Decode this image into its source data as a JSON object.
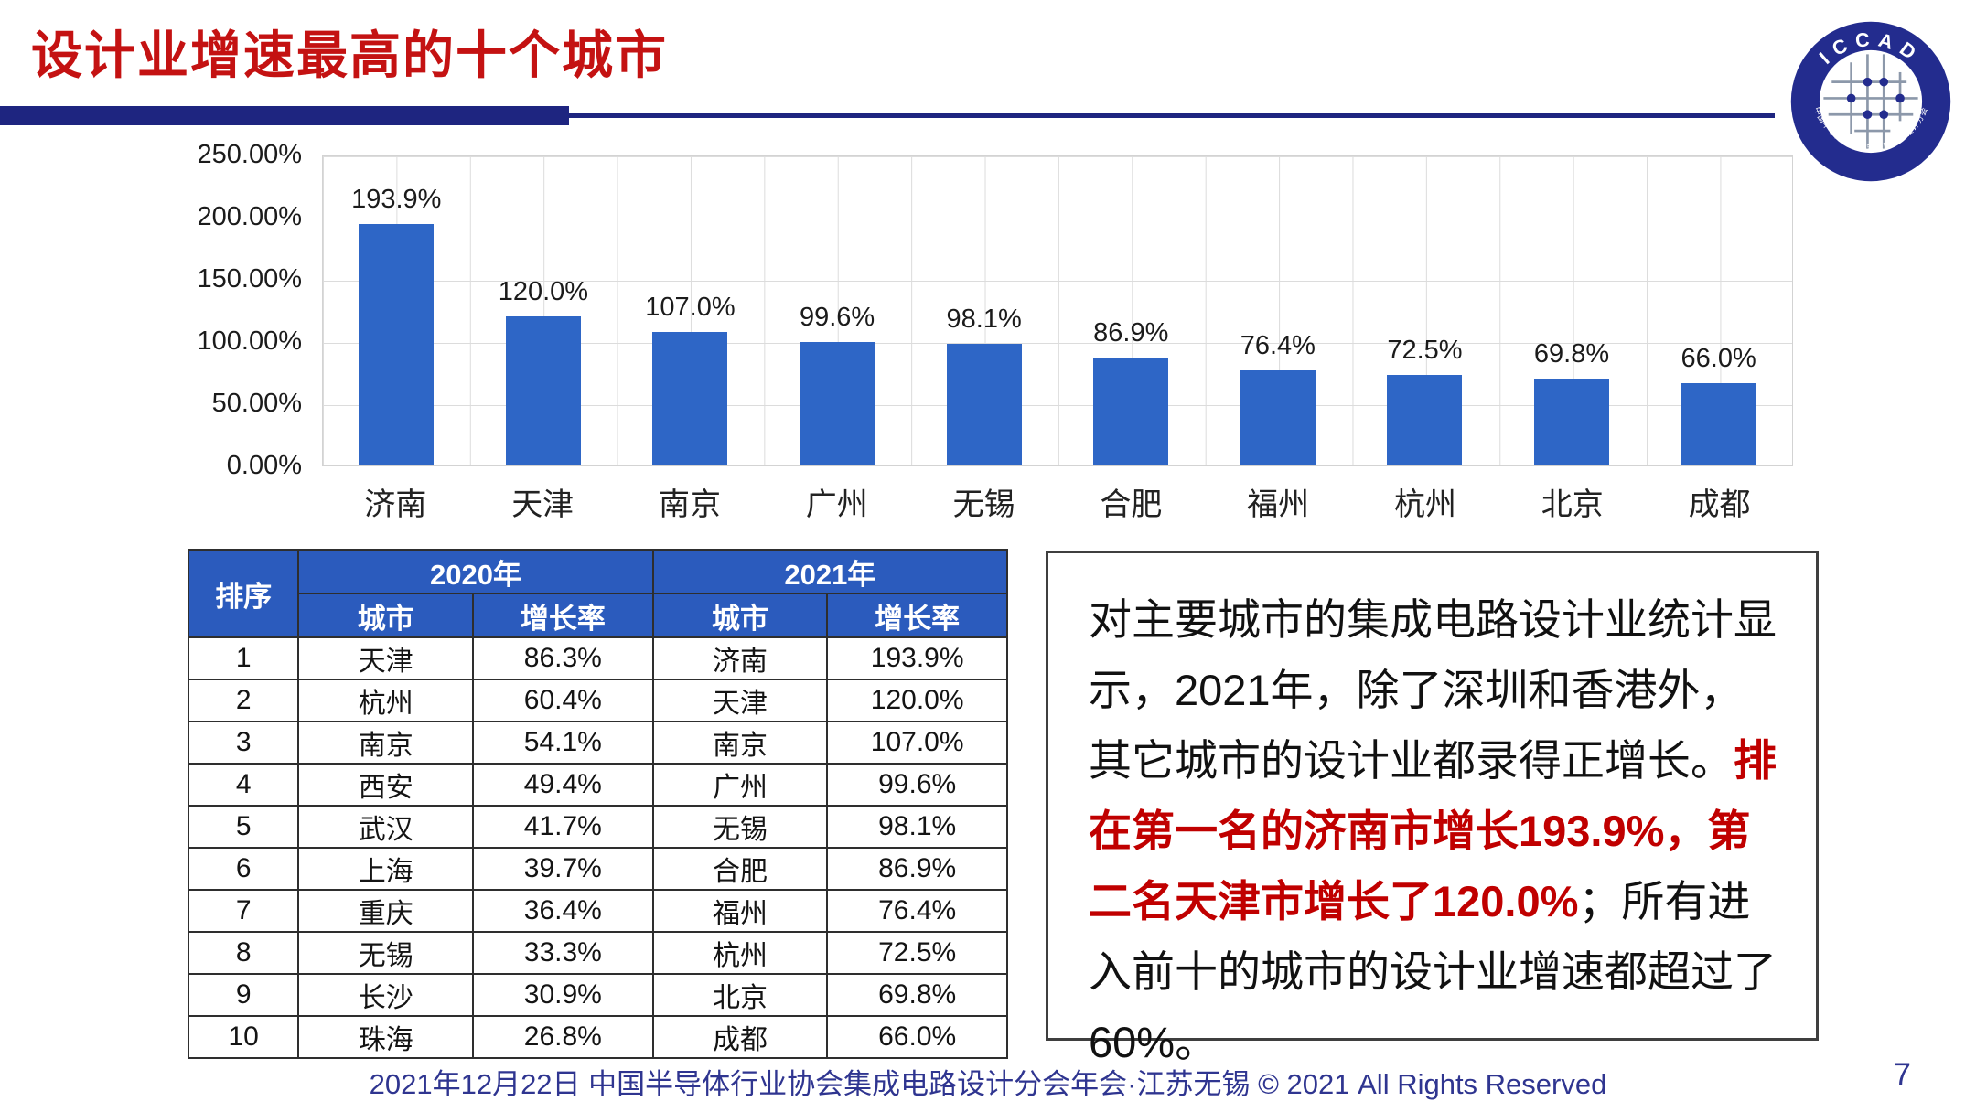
{
  "slide": {
    "title": "设计业增速最高的十个城市",
    "footer": "2021年12月22日 中国半导体行业协会集成电路设计分会年会·江苏无锡 © 2021 All Rights Reserved",
    "page_number": "7"
  },
  "logo": {
    "top_text": "ICCAD",
    "bottom_text": "中国半导体行业协会集成电路设计分会"
  },
  "chart_data": {
    "type": "bar",
    "title": "",
    "xlabel": "",
    "ylabel": "",
    "categories": [
      "济南",
      "天津",
      "南京",
      "广州",
      "无锡",
      "合肥",
      "福州",
      "杭州",
      "北京",
      "成都"
    ],
    "values": [
      193.9,
      120.0,
      107.0,
      99.6,
      98.1,
      86.9,
      76.4,
      72.5,
      69.8,
      66.0
    ],
    "data_labels": [
      "193.9%",
      "120.0%",
      "107.0%",
      "99.6%",
      "98.1%",
      "86.9%",
      "76.4%",
      "72.5%",
      "69.8%",
      "66.0%"
    ],
    "y_ticks": [
      "250.00%",
      "200.00%",
      "150.00%",
      "100.00%",
      "50.00%",
      "0.00%"
    ],
    "ylim": [
      0,
      250
    ],
    "grid": true,
    "legend": false,
    "bar_color": "#2E66C6"
  },
  "table": {
    "headers": {
      "rank": "排序",
      "year2020": "2020年",
      "year2021": "2021年",
      "city": "城市",
      "growth": "增长率"
    },
    "rows": [
      [
        "1",
        "天津",
        "86.3%",
        "济南",
        "193.9%"
      ],
      [
        "2",
        "杭州",
        "60.4%",
        "天津",
        "120.0%"
      ],
      [
        "3",
        "南京",
        "54.1%",
        "南京",
        "107.0%"
      ],
      [
        "4",
        "西安",
        "49.4%",
        "广州",
        "99.6%"
      ],
      [
        "5",
        "武汉",
        "41.7%",
        "无锡",
        "98.1%"
      ],
      [
        "6",
        "上海",
        "39.7%",
        "合肥",
        "86.9%"
      ],
      [
        "7",
        "重庆",
        "36.4%",
        "福州",
        "76.4%"
      ],
      [
        "8",
        "无锡",
        "33.3%",
        "杭州",
        "72.5%"
      ],
      [
        "9",
        "长沙",
        "30.9%",
        "北京",
        "69.8%"
      ],
      [
        "10",
        "珠海",
        "26.8%",
        "成都",
        "66.0%"
      ]
    ]
  },
  "commentary": {
    "part1_black": "对主要城市的集成电路设计业统计显示，2021年，除了深圳和香港外，其它城市的设计业都录得正增长。",
    "part2_red": "排在第一名的济南市增长193.9%，第二名天津市增长了120.0%",
    "part3_black": "；所有进入前十的城市的设计业增速都超过了60%。"
  },
  "colors": {
    "title_red": "#C41212",
    "commentary_red": "#C00000",
    "bar_blue": "#2E66C6",
    "table_header_blue": "#2B5BBD",
    "navy": "#1E2580",
    "footer_navy": "#2F3590",
    "grid_gray": "#DCDCDC"
  }
}
